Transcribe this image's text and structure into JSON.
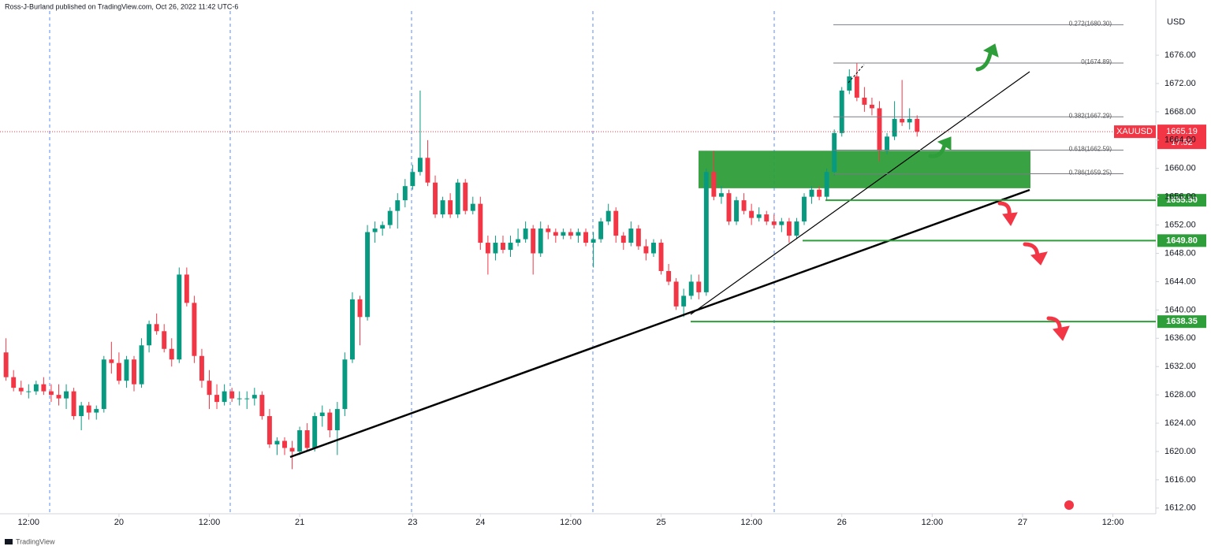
{
  "chart_data": {
    "type": "candlestick",
    "header": "Ross-J-Burland published on TradingView.com, Oct 26, 2022 11:42 UTC-6",
    "currency": "USD",
    "symbol": "XAUUSD",
    "last_price": 1665.19,
    "countdown": "17:52",
    "watermark": "TradingView",
    "up_color": "#089981",
    "down_color": "#f23645",
    "x": [
      0,
      1,
      2,
      3,
      4,
      5,
      6,
      7,
      8,
      9,
      10,
      11,
      12,
      13,
      14,
      15,
      16,
      17,
      18,
      19,
      20,
      21,
      22,
      23,
      24,
      25,
      26,
      27,
      28,
      29,
      30,
      31,
      32,
      33,
      34,
      35,
      36,
      37,
      38,
      39,
      40,
      41,
      42,
      43,
      44,
      45,
      46,
      47,
      48,
      49,
      50,
      51,
      52,
      53,
      54,
      55,
      56,
      57,
      58,
      59,
      60,
      61,
      62,
      63,
      64,
      65,
      66,
      67,
      68,
      69,
      70,
      71,
      72,
      73,
      74,
      75,
      76,
      77,
      78,
      79,
      80,
      81,
      82,
      83,
      84,
      85,
      86,
      87,
      88,
      89,
      90,
      91,
      92,
      93,
      94,
      95,
      96,
      97,
      98,
      99,
      100,
      101,
      102,
      103,
      104,
      105,
      106,
      107,
      108,
      109,
      110,
      111,
      112,
      113,
      114,
      115,
      116,
      117,
      118,
      119,
      120,
      121
    ],
    "open": [
      1634,
      1630.5,
      1629,
      1628.5,
      1628.5,
      1629.5,
      1628.5,
      1628,
      1627.5,
      1628.5,
      1625,
      1626.5,
      1625.5,
      1626,
      1633,
      1632.5,
      1630,
      1633,
      1629.5,
      1635,
      1638,
      1637,
      1634.5,
      1633,
      1645,
      1641,
      1633.5,
      1630,
      1628,
      1627,
      1628.5,
      1627.5,
      1627.5,
      1627.5,
      1628,
      1625,
      1621,
      1621.5,
      1620.5,
      1620,
      1623,
      1620.5,
      1625,
      1625.5,
      1623,
      1626,
      1633,
      1641.5,
      1639,
      1651,
      1651.5,
      1652,
      1654,
      1655.5,
      1657.5,
      1659.5,
      1661.5,
      1658,
      1653.5,
      1655.5,
      1653.5,
      1658,
      1654,
      1655,
      1649.5,
      1648,
      1649.5,
      1648.5,
      1649.5,
      1650,
      1651.5,
      1648,
      1651.5,
      1651,
      1650.5,
      1651,
      1650.5,
      1651,
      1649.5,
      1650,
      1652.5,
      1654,
      1650.5,
      1649.5,
      1651.5,
      1649,
      1648,
      1649.5,
      1645.5,
      1644,
      1640.5,
      1642,
      1644,
      1642.5,
      1659.5,
      1656,
      1656.5,
      1652.5,
      1655.5,
      1654,
      1653,
      1653.5,
      1652.5,
      1652,
      1652.5,
      1650.5,
      1652.5,
      1656,
      1657,
      1656,
      1659.5,
      1665,
      1671,
      1673,
      1670,
      1669,
      1668.5,
      1662.5,
      1664.5,
      1667,
      1666.5,
      1667
    ],
    "high": [
      1636,
      1631.5,
      1630,
      1629.5,
      1630,
      1630.5,
      1629.5,
      1629.5,
      1629.5,
      1629,
      1627,
      1627,
      1626.5,
      1633.5,
      1635.5,
      1634,
      1633.5,
      1633.5,
      1636,
      1638.5,
      1639.5,
      1638,
      1636,
      1646,
      1646,
      1642,
      1634.5,
      1631.5,
      1629.5,
      1629.5,
      1629,
      1628.5,
      1628.5,
      1629,
      1628.5,
      1626,
      1622,
      1622,
      1621.5,
      1623.5,
      1624,
      1625.5,
      1626.5,
      1626,
      1627,
      1634,
      1642.5,
      1642,
      1652,
      1652.5,
      1652.5,
      1654.5,
      1656.5,
      1658.5,
      1660.5,
      1671,
      1664,
      1659,
      1656,
      1656.5,
      1658.5,
      1658.5,
      1656,
      1656,
      1650.5,
      1650.5,
      1650.5,
      1650.5,
      1651.5,
      1652.5,
      1652,
      1652.5,
      1652,
      1651.5,
      1651.5,
      1651.5,
      1651.5,
      1651.5,
      1651,
      1653,
      1655,
      1654.5,
      1651,
      1652.5,
      1652,
      1650,
      1650,
      1650,
      1646.5,
      1644.5,
      1643,
      1645,
      1645,
      1660,
      1662.5,
      1657.5,
      1657,
      1656,
      1656.5,
      1655,
      1654.5,
      1654,
      1653.5,
      1653,
      1653,
      1653,
      1656.5,
      1657.5,
      1657.5,
      1660,
      1665.5,
      1671.5,
      1674,
      1674.9,
      1671.5,
      1670,
      1669.5,
      1665,
      1669.5,
      1672.5,
      1668.5,
      1667.5
    ],
    "low": [
      1630,
      1628.5,
      1628,
      1627.5,
      1628,
      1628,
      1627,
      1626.5,
      1626,
      1624.5,
      1623,
      1624.5,
      1624.5,
      1625.5,
      1631,
      1629.5,
      1629,
      1628.5,
      1629,
      1634,
      1636.5,
      1634,
      1632,
      1632.5,
      1640.5,
      1632.5,
      1629,
      1626,
      1626,
      1626.5,
      1627,
      1626.5,
      1626,
      1626.5,
      1624.5,
      1620.5,
      1619.5,
      1619.5,
      1617.5,
      1619.5,
      1620,
      1620,
      1623.5,
      1622,
      1619.5,
      1625,
      1632.5,
      1635,
      1638.5,
      1649.5,
      1650.5,
      1651.5,
      1651.5,
      1654.5,
      1657,
      1659,
      1657.5,
      1653,
      1653,
      1653,
      1653,
      1653.5,
      1653.5,
      1648.5,
      1645,
      1647,
      1648,
      1647.5,
      1649,
      1649.5,
      1645,
      1647.5,
      1650,
      1649.5,
      1650,
      1650,
      1649.5,
      1649,
      1646,
      1649.5,
      1652,
      1649.5,
      1648.5,
      1649,
      1648.5,
      1647,
      1647.5,
      1645,
      1643.5,
      1640,
      1639,
      1641.5,
      1641.5,
      1642,
      1655.5,
      1655,
      1652,
      1652,
      1653.5,
      1652,
      1652.5,
      1652,
      1651.5,
      1651,
      1649.5,
      1650,
      1652,
      1655,
      1655.5,
      1655.5,
      1659,
      1664.5,
      1670.5,
      1669.5,
      1668,
      1667.5,
      1661,
      1662,
      1664,
      1666,
      1665.5,
      1664.5
    ],
    "close": [
      1630.5,
      1629,
      1628.5,
      1628.5,
      1629.5,
      1628.5,
      1628,
      1627.5,
      1628.5,
      1625,
      1626.5,
      1625.5,
      1626,
      1633,
      1632.5,
      1630,
      1633,
      1629.5,
      1635,
      1638,
      1637,
      1634.5,
      1633,
      1645,
      1641,
      1633.5,
      1630,
      1628,
      1627,
      1628.5,
      1627.5,
      1627.5,
      1627.5,
      1628,
      1625,
      1621,
      1621.5,
      1620.5,
      1620,
      1623,
      1620.5,
      1625,
      1625.5,
      1623,
      1626,
      1633,
      1641.5,
      1639,
      1651,
      1651.5,
      1652,
      1654,
      1655.5,
      1657.5,
      1659.5,
      1661.5,
      1658,
      1653.5,
      1655.5,
      1653.5,
      1658,
      1654,
      1655,
      1649.5,
      1648,
      1649.5,
      1648.5,
      1649.5,
      1650,
      1651.5,
      1648,
      1651.5,
      1651,
      1650.5,
      1651,
      1650.5,
      1651,
      1649.5,
      1650,
      1652.5,
      1654,
      1650.5,
      1649.5,
      1651.5,
      1649,
      1648,
      1649.5,
      1645.5,
      1644,
      1640.5,
      1642,
      1644,
      1642.5,
      1659.5,
      1656,
      1656.5,
      1652.5,
      1655.5,
      1654,
      1653,
      1653.5,
      1652.5,
      1652,
      1652.5,
      1650.5,
      1652.5,
      1656,
      1657,
      1656,
      1659.5,
      1665,
      1671,
      1673,
      1670,
      1669,
      1668.5,
      1662.5,
      1664.5,
      1667,
      1666.5,
      1667,
      1665.19
    ],
    "xlim": [
      -0.8,
      152.7
    ],
    "ylim": [
      1611.2,
      1683.8
    ],
    "xticks": [
      {
        "value": 3,
        "label": "12:00"
      },
      {
        "value": 15,
        "label": "20"
      },
      {
        "value": 27,
        "label": "12:00"
      },
      {
        "value": 39,
        "label": "21"
      },
      {
        "value": 54,
        "label": "23"
      },
      {
        "value": 63,
        "label": "24"
      },
      {
        "value": 75,
        "label": "12:00"
      },
      {
        "value": 87,
        "label": "25"
      },
      {
        "value": 99,
        "label": "12:00"
      },
      {
        "value": 111,
        "label": "26"
      },
      {
        "value": 123,
        "label": "12:00"
      },
      {
        "value": 135,
        "label": "27"
      },
      {
        "value": 147,
        "label": "12:00"
      }
    ],
    "yticks": [
      {
        "value": 1612,
        "label": "1612.00"
      },
      {
        "value": 1616,
        "label": "1616.00"
      },
      {
        "value": 1620,
        "label": "1620.00"
      },
      {
        "value": 1624,
        "label": "1624.00"
      },
      {
        "value": 1628,
        "label": "1628.00"
      },
      {
        "value": 1632,
        "label": "1632.00"
      },
      {
        "value": 1636,
        "label": "1636.00"
      },
      {
        "value": 1640,
        "label": "1640.00"
      },
      {
        "value": 1644,
        "label": "1644.00"
      },
      {
        "value": 1648,
        "label": "1648.00"
      },
      {
        "value": 1652,
        "label": "1652.00"
      },
      {
        "value": 1656,
        "label": "1656.00"
      },
      {
        "value": 1660,
        "label": "1660.00"
      },
      {
        "value": 1664,
        "label": "1664.00"
      },
      {
        "value": 1668,
        "label": "1668.00"
      },
      {
        "value": 1672,
        "label": "1672.00"
      },
      {
        "value": 1676,
        "label": "1676.00"
      }
    ],
    "fib_levels": [
      {
        "value": 1680.3,
        "label": "0.272(1680.30)"
      },
      {
        "value": 1674.89,
        "label": "0(1674.89)"
      },
      {
        "value": 1667.29,
        "label": "0.382(1667.29)"
      },
      {
        "value": 1662.59,
        "label": "0.618(1662.59)"
      },
      {
        "value": 1659.25,
        "label": "0.786(1659.25)"
      }
    ],
    "levels": [
      {
        "value": 1655.5,
        "label": "1655.50"
      },
      {
        "value": 1649.8,
        "label": "1649.80"
      },
      {
        "value": 1638.35,
        "label": "1638.35"
      }
    ],
    "zone": [
      1657.2,
      1662.5
    ],
    "grid": false
  }
}
